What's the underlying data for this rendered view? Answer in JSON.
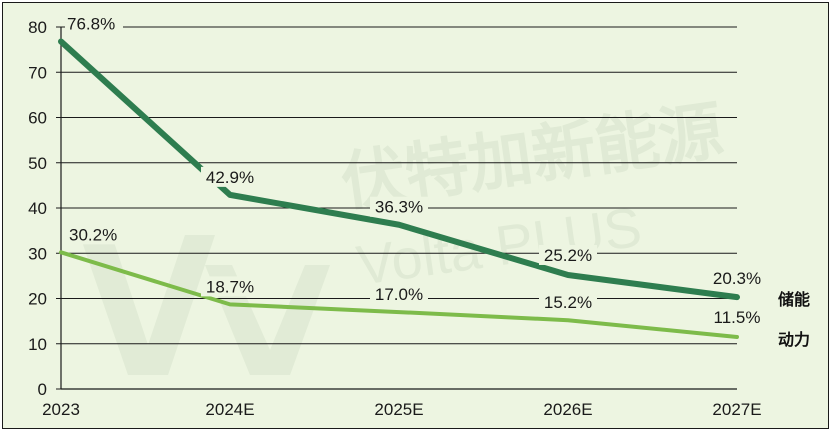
{
  "chart_data": {
    "type": "line",
    "categories": [
      "2023",
      "2024E",
      "2025E",
      "2026E",
      "2027E"
    ],
    "series": [
      {
        "name": "储能",
        "values": [
          76.8,
          42.9,
          36.3,
          25.2,
          20.3
        ],
        "labels": [
          "76.8%",
          "42.9%",
          "36.3%",
          "25.2%",
          "20.3%"
        ],
        "color": "#2e7d4f"
      },
      {
        "name": "动力",
        "values": [
          30.2,
          18.7,
          17.0,
          15.2,
          11.5
        ],
        "labels": [
          "30.2%",
          "18.7%",
          "17.0%",
          "15.2%",
          "11.5%"
        ],
        "color": "#7dbb4a"
      }
    ],
    "y_ticks": [
      "0",
      "10",
      "20",
      "30",
      "40",
      "50",
      "60",
      "70",
      "80"
    ],
    "ylim": [
      0,
      80
    ],
    "grid": true,
    "legend": "right, end of lines",
    "title": "",
    "xlabel": "",
    "ylabel": ""
  },
  "watermark": {
    "cn": "伏特加新能源",
    "en": "Volta PLUS"
  },
  "colors": {
    "background": "#edf5e1",
    "grid": "#1a1a1a"
  }
}
